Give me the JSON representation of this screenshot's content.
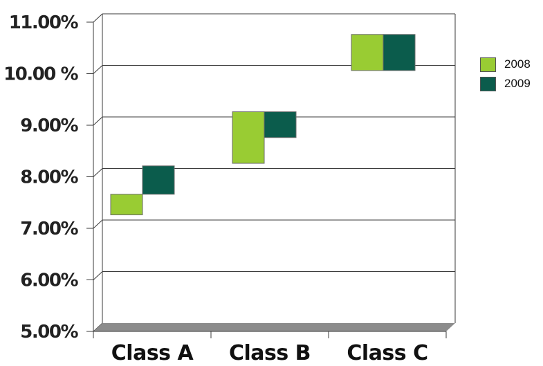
{
  "chart_data": {
    "type": "floating-bar",
    "categories": [
      "Class A",
      "Class B",
      "Class C"
    ],
    "series": [
      {
        "name": "2008",
        "color": "#99cc33",
        "ranges": [
          [
            7.1,
            7.5
          ],
          [
            8.1,
            9.1
          ],
          [
            9.9,
            10.6
          ]
        ]
      },
      {
        "name": "2009",
        "color": "#0b5c4c",
        "ranges": [
          [
            7.5,
            8.05
          ],
          [
            8.6,
            9.1
          ],
          [
            9.9,
            10.6
          ]
        ]
      }
    ],
    "y_ticks": [
      "5.00%",
      "6.00%",
      "7.00%",
      "8.00%",
      "9.00%",
      "10.00 %",
      "11.00%"
    ],
    "ylim": [
      5,
      11
    ],
    "grid": true,
    "legend_position": "right"
  }
}
